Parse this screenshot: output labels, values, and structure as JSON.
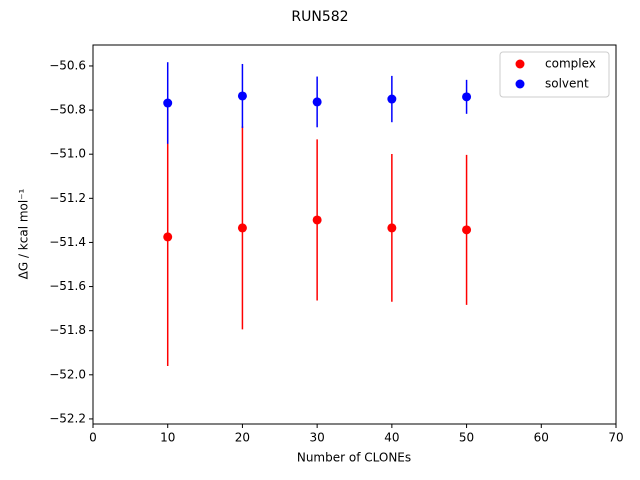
{
  "chart_data": {
    "type": "errorbar",
    "title": "RUN582",
    "x_label": "Number of CLONEs",
    "y_label": "ΔG / kcal mol⁻¹",
    "x": [
      10,
      20,
      30,
      40,
      50
    ],
    "series": [
      {
        "name": "complex",
        "color": "#ff0000",
        "values": [
          -51.375,
          -51.334,
          -51.298,
          -51.334,
          -51.343
        ],
        "errors": [
          0.585,
          0.46,
          0.365,
          0.335,
          0.34
        ]
      },
      {
        "name": "solvent",
        "color": "#0000ff",
        "values": [
          -50.768,
          -50.736,
          -50.763,
          -50.75,
          -50.74
        ],
        "errors": [
          0.185,
          0.145,
          0.115,
          0.105,
          0.077
        ]
      }
    ],
    "xlim": [
      0,
      70
    ],
    "xticks": [
      0,
      10,
      20,
      30,
      40,
      50,
      60,
      70
    ],
    "ylim": [
      -52.223,
      -50.505
    ],
    "yticks": [
      {
        "value": -52.2,
        "label": "−52.2"
      },
      {
        "value": -52.0,
        "label": "−52.0"
      },
      {
        "value": -51.8,
        "label": "−51.8"
      },
      {
        "value": -51.6,
        "label": "−51.6"
      },
      {
        "value": -51.4,
        "label": "−51.4"
      },
      {
        "value": -51.2,
        "label": "−51.2"
      },
      {
        "value": -51.0,
        "label": "−51.0"
      },
      {
        "value": -50.8,
        "label": "−50.8"
      },
      {
        "value": -50.6,
        "label": "−50.6"
      }
    ],
    "legend": "upper right"
  }
}
